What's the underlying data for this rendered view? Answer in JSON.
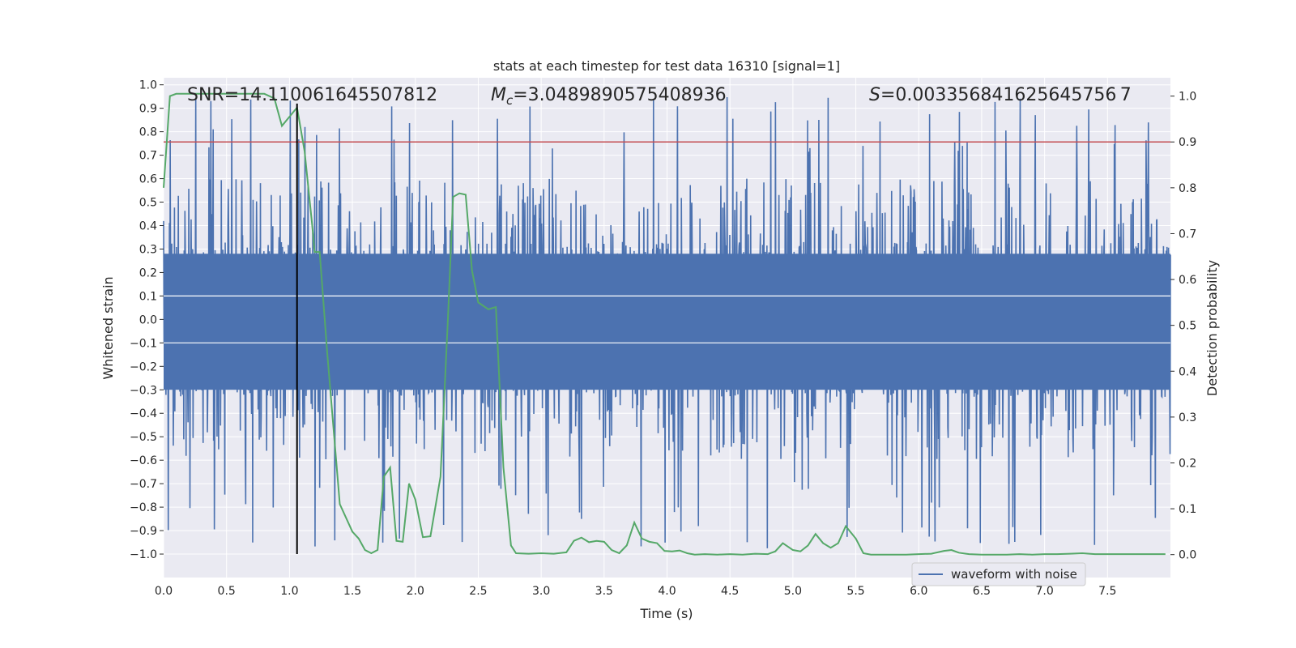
{
  "chart_data": {
    "type": "line",
    "title": "stats at each timestep for test data 16310 [signal=1]",
    "xlabel": "Time (s)",
    "ylabel": "Whitened strain",
    "y2label": "Detection probability",
    "xlim": [
      0.0,
      8.0
    ],
    "ylim": [
      -1.1,
      1.03
    ],
    "y2lim": [
      -0.05,
      1.04
    ],
    "x_ticks": [
      "0.0",
      "0.5",
      "1.0",
      "1.5",
      "2.0",
      "2.5",
      "3.0",
      "3.5",
      "4.0",
      "4.5",
      "5.0",
      "5.5",
      "6.0",
      "6.5",
      "7.0",
      "7.5"
    ],
    "y_ticks": [
      "1.0",
      "0.9",
      "0.8",
      "0.7",
      "0.6",
      "0.5",
      "0.4",
      "0.3",
      "0.2",
      "0.1",
      "0.0",
      "−0.1",
      "−0.2",
      "−0.3",
      "−0.4",
      "−0.5",
      "−0.6",
      "−0.7",
      "−0.8",
      "−0.9",
      "−1.0"
    ],
    "y2_ticks": [
      "1.0",
      "0.9",
      "0.8",
      "0.7",
      "0.6",
      "0.5",
      "0.4",
      "0.3",
      "0.2",
      "0.1",
      "0.0"
    ],
    "annotations": {
      "snr": "SNR=14.110061645507812",
      "mc_symbol": "M",
      "mc_sub": "c",
      "mc_value": "=3.0489890575408936",
      "s_symbol": "S",
      "s_value": "=0.003356841625645756 7"
    },
    "legend": {
      "label": "waveform with noise",
      "position": "lower-right"
    },
    "threshold": {
      "y2": 0.9,
      "color": "#c44e52"
    },
    "marker_line": {
      "x": 1.06,
      "y_range": [
        -1.0,
        0.92
      ]
    },
    "waveform": {
      "name": "waveform with noise",
      "color": "#4c72b0",
      "duration_s": 8.0,
      "amplitude_core": [
        -0.33,
        0.33
      ],
      "amplitude_extremes": [
        -0.98,
        0.95
      ]
    },
    "probability_series": {
      "name": "detection probability",
      "color": "#55a868",
      "x": [
        0.0,
        0.05,
        0.1,
        0.2,
        0.3,
        0.4,
        0.5,
        0.6,
        0.7,
        0.8,
        0.88,
        0.94,
        1.0,
        1.06,
        1.12,
        1.18,
        1.2,
        1.24,
        1.3,
        1.4,
        1.5,
        1.55,
        1.6,
        1.65,
        1.7,
        1.75,
        1.8,
        1.85,
        1.9,
        1.95,
        2.0,
        2.06,
        2.12,
        2.2,
        2.26,
        2.3,
        2.35,
        2.4,
        2.45,
        2.5,
        2.58,
        2.64,
        2.7,
        2.76,
        2.8,
        2.9,
        3.0,
        3.1,
        3.2,
        3.26,
        3.32,
        3.38,
        3.44,
        3.5,
        3.56,
        3.62,
        3.68,
        3.74,
        3.8,
        3.86,
        3.92,
        3.98,
        4.04,
        4.1,
        4.16,
        4.22,
        4.3,
        4.4,
        4.5,
        4.6,
        4.7,
        4.8,
        4.86,
        4.92,
        5.0,
        5.06,
        5.12,
        5.18,
        5.24,
        5.3,
        5.36,
        5.42,
        5.5,
        5.56,
        5.62,
        5.7,
        5.8,
        5.9,
        6.0,
        6.1,
        6.2,
        6.26,
        6.32,
        6.4,
        6.5,
        6.6,
        6.7,
        6.8,
        6.9,
        7.0,
        7.1,
        7.2,
        7.3,
        7.4,
        7.5,
        7.6,
        7.7,
        7.8,
        7.9,
        7.96
      ],
      "values": [
        0.8,
        1.0,
        1.005,
        1.005,
        1.005,
        1.005,
        1.005,
        1.005,
        1.005,
        1.005,
        0.995,
        0.935,
        0.955,
        0.975,
        0.88,
        0.72,
        0.66,
        0.66,
        0.44,
        0.11,
        0.05,
        0.035,
        0.01,
        0.003,
        0.01,
        0.17,
        0.19,
        0.03,
        0.028,
        0.155,
        0.12,
        0.038,
        0.04,
        0.17,
        0.52,
        0.78,
        0.788,
        0.785,
        0.62,
        0.55,
        0.535,
        0.54,
        0.19,
        0.02,
        0.003,
        0.002,
        0.003,
        0.002,
        0.005,
        0.03,
        0.037,
        0.027,
        0.03,
        0.028,
        0.01,
        0.003,
        0.02,
        0.07,
        0.035,
        0.028,
        0.025,
        0.008,
        0.007,
        0.009,
        0.003,
        0.0,
        0.001,
        0.0,
        0.001,
        0.0,
        0.002,
        0.001,
        0.007,
        0.025,
        0.01,
        0.007,
        0.02,
        0.045,
        0.025,
        0.015,
        0.025,
        0.062,
        0.035,
        0.003,
        0.0,
        0.0,
        0.0,
        0.0,
        0.001,
        0.002,
        0.008,
        0.01,
        0.004,
        0.001,
        0.0,
        0.0,
        0.0,
        0.001,
        0.0,
        0.001,
        0.001,
        0.002,
        0.003,
        0.001,
        0.001,
        0.001,
        0.001,
        0.001,
        0.001,
        0.001
      ]
    }
  }
}
